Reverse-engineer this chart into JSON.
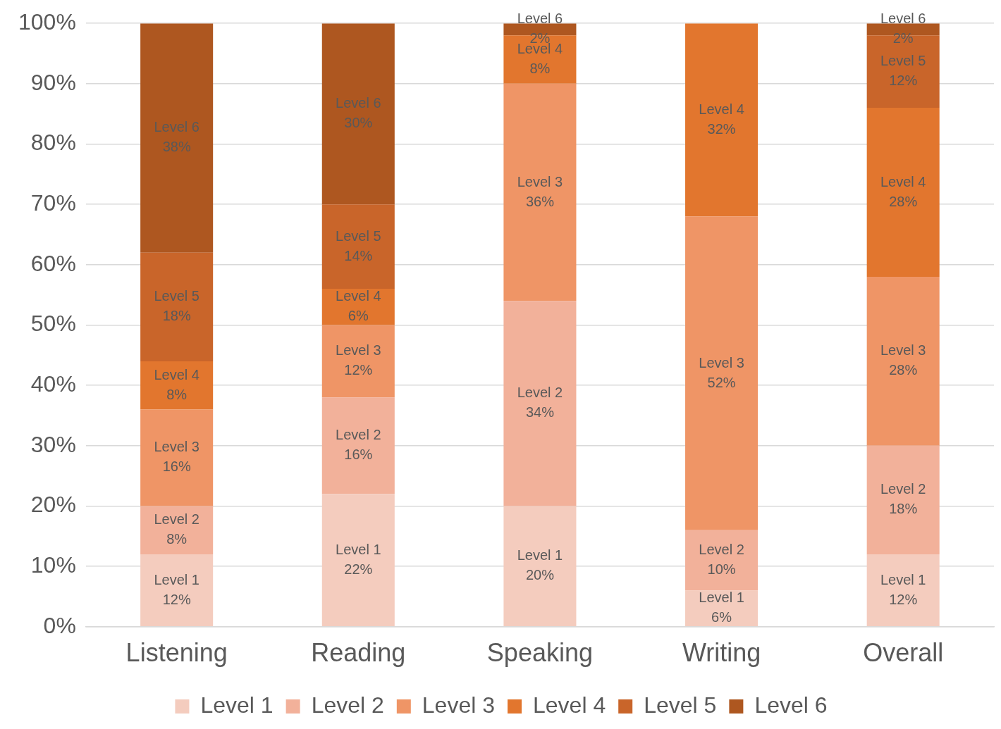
{
  "chart_data": {
    "type": "bar",
    "stacked": true,
    "categories": [
      "Listening",
      "Reading",
      "Speaking",
      "Writing",
      "Overall"
    ],
    "series": [
      {
        "name": "Level 1",
        "color": "#f4ccbe",
        "values": [
          12,
          22,
          20,
          6,
          12
        ],
        "value_labels": [
          "12%",
          "22%",
          "20%",
          "6%",
          "12%"
        ]
      },
      {
        "name": "Level 2",
        "color": "#f2b19a",
        "values": [
          8,
          16,
          34,
          10,
          18
        ],
        "value_labels": [
          "8%",
          "16%",
          "34%",
          "10%",
          "18%"
        ]
      },
      {
        "name": "Level 3",
        "color": "#ef9566",
        "values": [
          16,
          12,
          36,
          52,
          28
        ],
        "value_labels": [
          "16%",
          "12%",
          "36%",
          "52%",
          "28%"
        ]
      },
      {
        "name": "Level 4",
        "color": "#e2762e",
        "values": [
          8,
          6,
          8,
          32,
          28
        ],
        "value_labels": [
          "8%",
          "6%",
          "8%",
          "32%",
          "28%"
        ]
      },
      {
        "name": "Level 5",
        "color": "#c9652a",
        "values": [
          18,
          14,
          null,
          null,
          12
        ],
        "value_labels": [
          "18%",
          "14%",
          null,
          null,
          "12%"
        ]
      },
      {
        "name": "Level 6",
        "color": "#ae5720",
        "values": [
          38,
          30,
          2,
          null,
          2
        ],
        "value_labels": [
          "38%",
          "30%",
          "2%",
          null,
          "2%"
        ]
      }
    ],
    "ylim": [
      0,
      100
    ],
    "yticks": [
      {
        "value": 0,
        "label": "0%"
      },
      {
        "value": 10,
        "label": "10%"
      },
      {
        "value": 20,
        "label": "20%"
      },
      {
        "value": 30,
        "label": "30%"
      },
      {
        "value": 40,
        "label": "40%"
      },
      {
        "value": 50,
        "label": "50%"
      },
      {
        "value": 60,
        "label": "60%"
      },
      {
        "value": 70,
        "label": "70%"
      },
      {
        "value": 80,
        "label": "80%"
      },
      {
        "value": 90,
        "label": "90%"
      },
      {
        "value": 100,
        "label": "100%"
      }
    ],
    "grid": "y",
    "legend": "bottom"
  }
}
